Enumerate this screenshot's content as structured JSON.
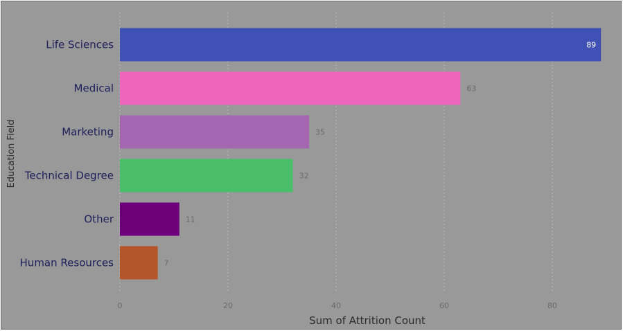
{
  "chart_data": {
    "type": "bar",
    "orientation": "horizontal",
    "categories": [
      "Life Sciences",
      "Medical",
      "Marketing",
      "Technical Degree",
      "Other",
      "Human Resources"
    ],
    "values": [
      89,
      63,
      35,
      32,
      11,
      7
    ],
    "colors": [
      "#3f51b5",
      "#ee66bb",
      "#a466b0",
      "#4bbe6b",
      "#6d007a",
      "#b5552a"
    ],
    "xlabel": "Sum of Attrition Count",
    "ylabel": "Education Field",
    "xlim": [
      0,
      89
    ],
    "xticks": [
      0,
      20,
      40,
      60,
      80
    ],
    "grid": true,
    "data_labels": true
  }
}
